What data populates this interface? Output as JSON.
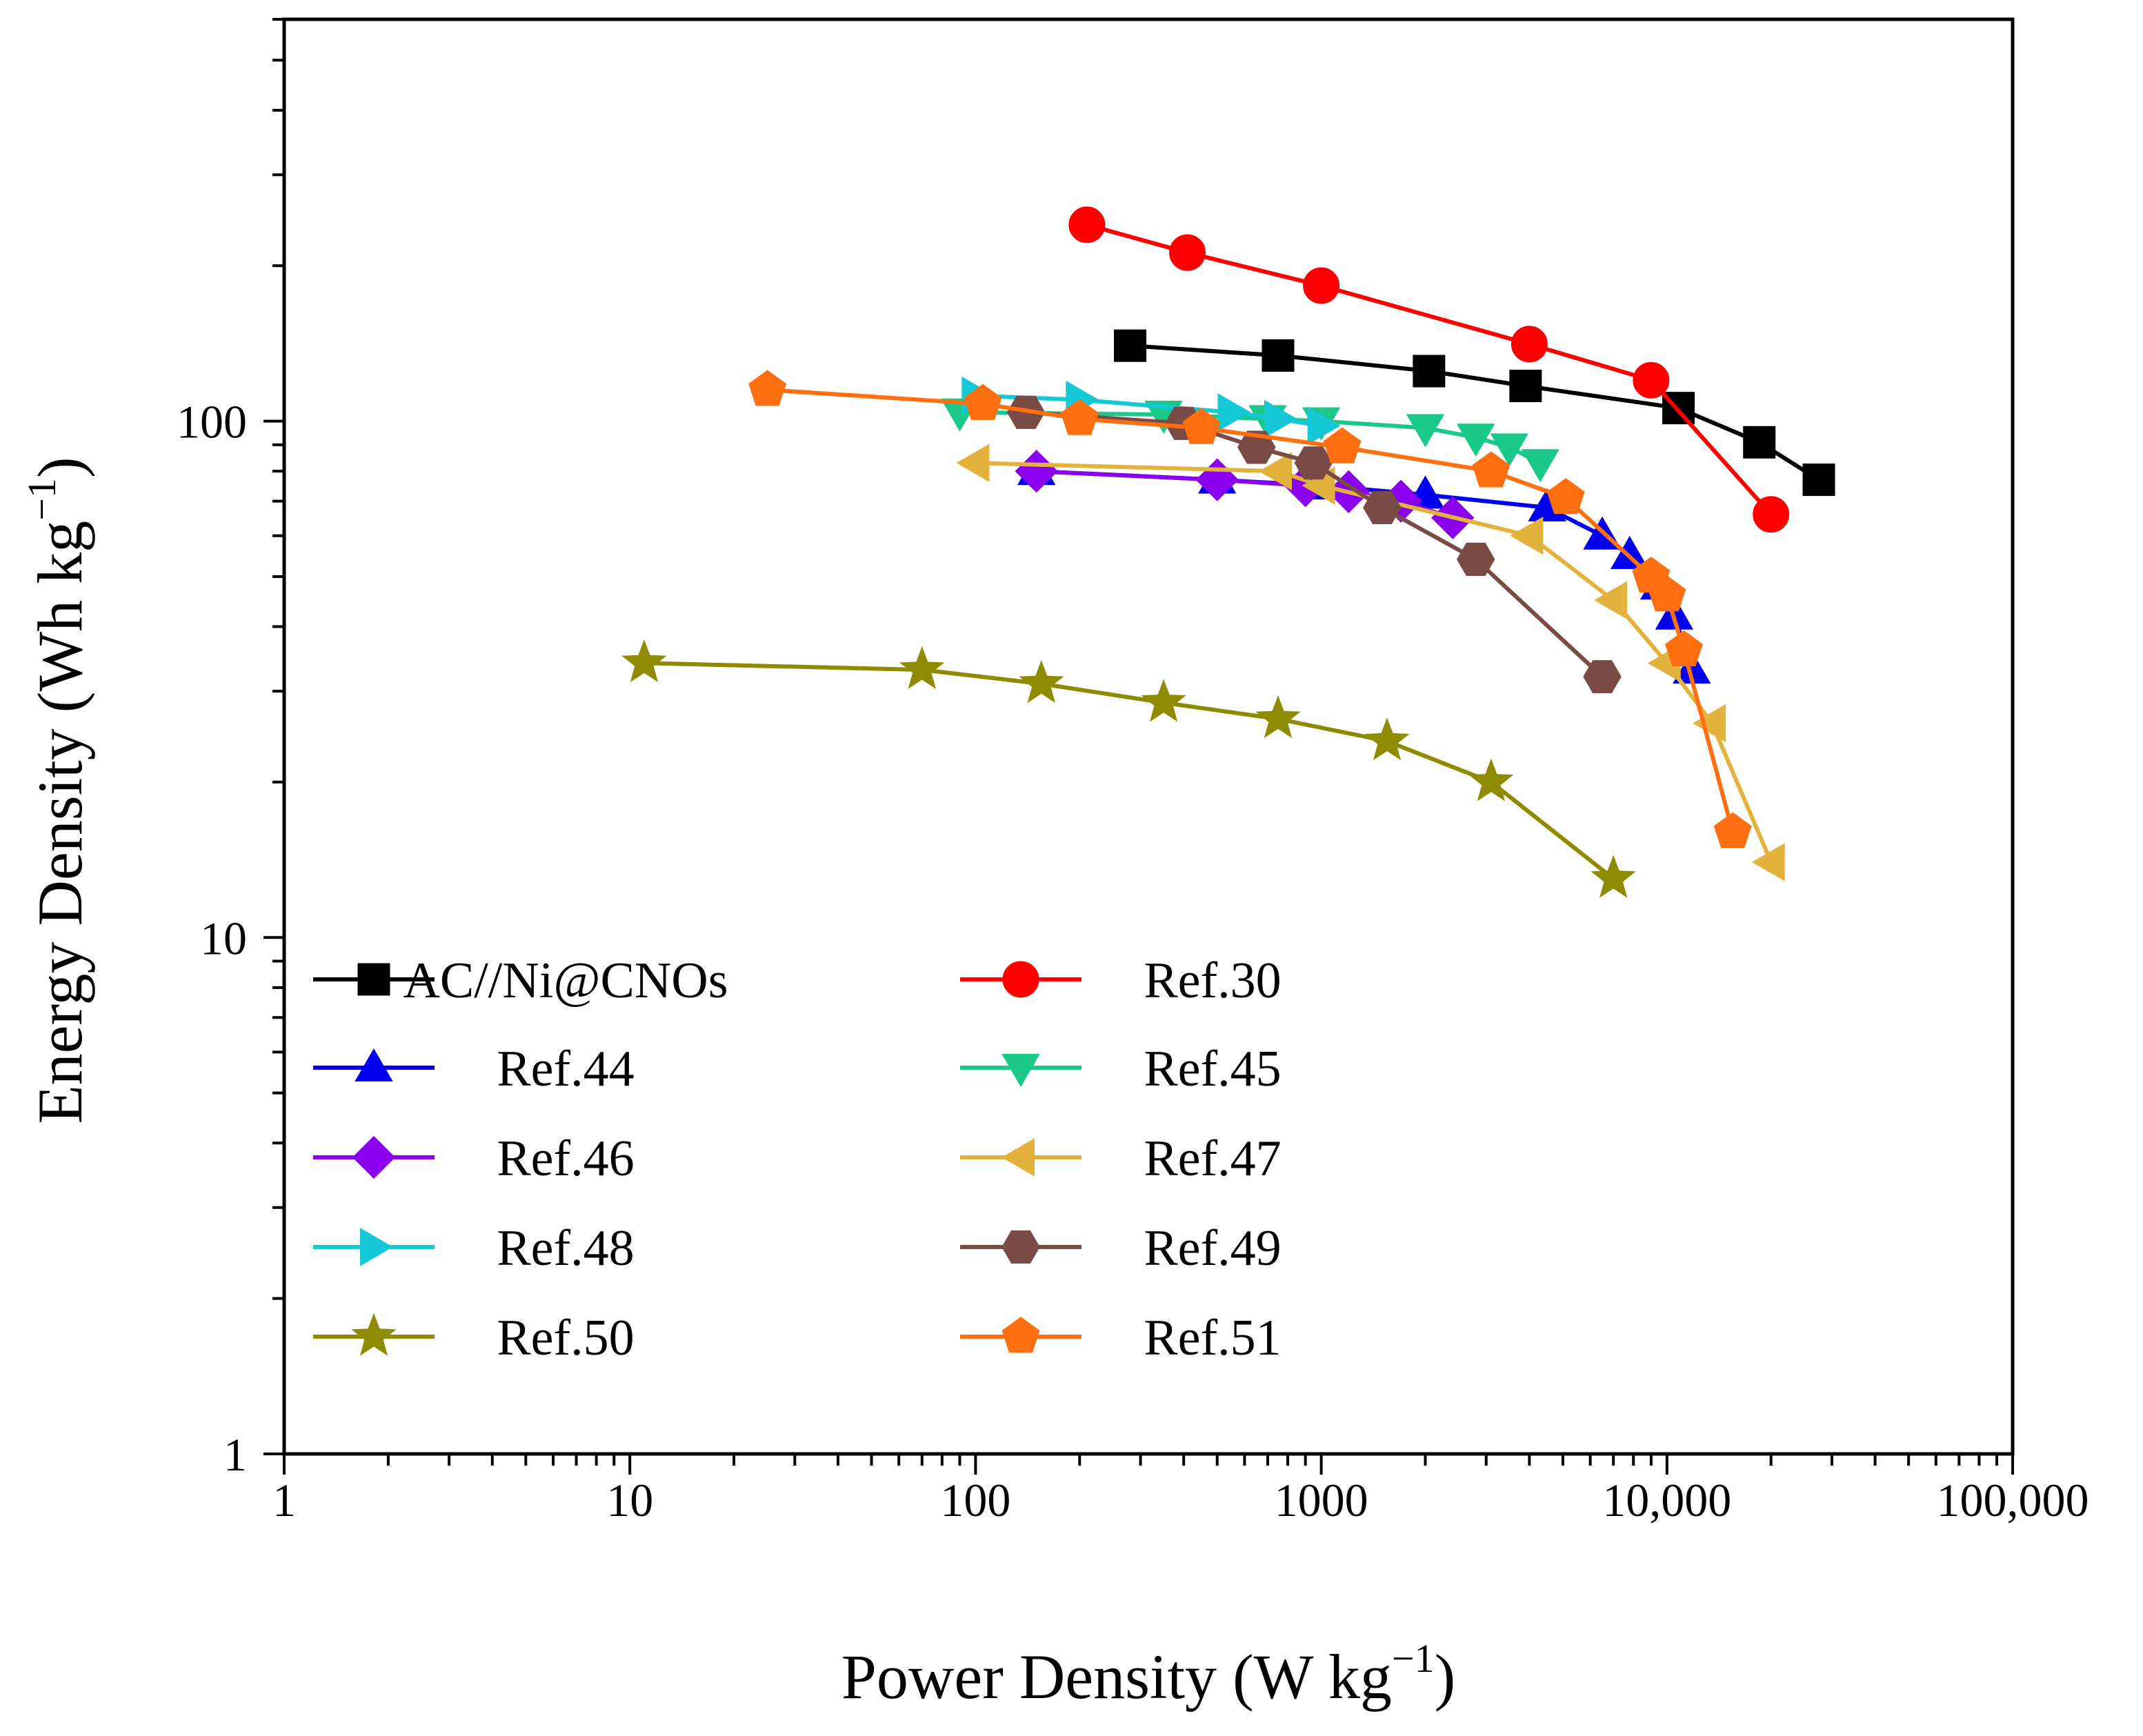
{
  "chart_data": {
    "type": "scatter",
    "title": "",
    "xlabel_main": "Power Density (W kg",
    "xlabel_sup": "−1",
    "xlabel_end": ")",
    "ylabel_main": "Energy Density (Wh kg",
    "ylabel_sup": "−1",
    "ylabel_end": ")",
    "xscale": "log",
    "yscale": "log",
    "xlim": [
      1,
      100000
    ],
    "ylim": [
      1,
      600
    ],
    "grid": false,
    "legend_position": "lower-left, two columns",
    "x_tick_labels": [
      {
        "value": 1,
        "label": "1"
      },
      {
        "value": 10,
        "label": "10"
      },
      {
        "value": 100,
        "label": "100"
      },
      {
        "value": 1000,
        "label": "1000"
      },
      {
        "value": 10000,
        "label": "10,000"
      },
      {
        "value": 100000,
        "label": "100,000"
      }
    ],
    "y_tick_labels": [
      {
        "value": 1,
        "label": "1"
      },
      {
        "value": 10,
        "label": "10"
      },
      {
        "value": 100,
        "label": "100"
      }
    ],
    "series": [
      {
        "name": "AC//Ni@CNOs",
        "color": "#000000",
        "marker": "square",
        "x": [
          280,
          750,
          2050,
          3900,
          10800,
          18500,
          27500
        ],
        "y": [
          140,
          134,
          125,
          117,
          106,
          91,
          77
        ]
      },
      {
        "name": "Ref.30",
        "color": "#ff0000",
        "marker": "circle",
        "x": [
          210,
          410,
          1000,
          4000,
          9000,
          20000
        ],
        "y": [
          240,
          212,
          183,
          141,
          120,
          66
        ]
      },
      {
        "name": "Ref.44",
        "color": "#0000ee",
        "marker": "triangle-up",
        "x": [
          150,
          500,
          1000,
          2000,
          4500,
          6500,
          7800,
          9500,
          10500,
          11800
        ],
        "y": [
          80,
          77,
          75,
          72,
          68,
          60,
          55,
          48,
          42,
          33
        ]
      },
      {
        "name": "Ref.45",
        "color": "#1ac98a",
        "marker": "triangle-down",
        "x": [
          90,
          350,
          700,
          1000,
          2000,
          2800,
          3500,
          4300
        ],
        "y": [
          104,
          103,
          101,
          100,
          97,
          93,
          89,
          83
        ]
      },
      {
        "name": "Ref.46",
        "color": "#8a00ee",
        "marker": "diamond",
        "x": [
          150,
          500,
          900,
          1200,
          1700,
          2400
        ],
        "y": [
          80,
          77,
          75,
          73,
          70,
          65
        ]
      },
      {
        "name": "Ref.47",
        "color": "#e3b23c",
        "marker": "triangle-left",
        "x": [
          100,
          750,
          1000,
          4000,
          7000,
          10000,
          13500,
          20000
        ],
        "y": [
          83,
          80,
          75,
          60,
          45,
          34,
          26,
          14
        ]
      },
      {
        "name": "Ref.48",
        "color": "#14c8d6",
        "marker": "triangle-right",
        "x": [
          100,
          200,
          550,
          750,
          1000
        ],
        "y": [
          112,
          110,
          104,
          101,
          98
        ]
      },
      {
        "name": "Ref.49",
        "color": "#7a4a45",
        "marker": "hexagon",
        "x": [
          140,
          400,
          650,
          950,
          1500,
          2800,
          6500
        ],
        "y": [
          104,
          99,
          89,
          83,
          68,
          54,
          32
        ]
      },
      {
        "name": "Ref.50",
        "color": "#8f8b00",
        "marker": "star",
        "x": [
          11,
          70,
          155,
          350,
          750,
          1550,
          3100,
          7000
        ],
        "y": [
          34,
          33,
          31,
          28.5,
          26.5,
          24,
          20,
          13
        ]
      },
      {
        "name": "Ref.51",
        "color": "#ff6f10",
        "marker": "pentagon",
        "x": [
          25,
          105,
          200,
          450,
          1150,
          3100,
          5100,
          9000,
          10000,
          11200,
          15500
        ],
        "y": [
          115,
          108,
          101,
          97,
          89,
          80,
          71,
          50,
          46,
          36,
          16
        ]
      }
    ]
  }
}
